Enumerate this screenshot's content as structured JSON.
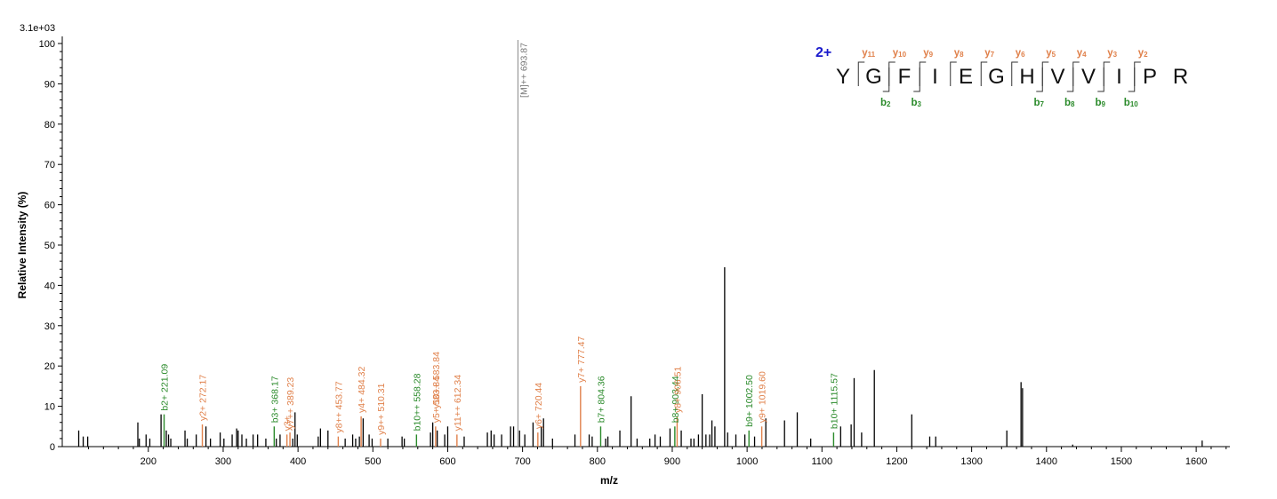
{
  "chart_data": {
    "type": "bar",
    "subtype": "ms2-spectrum",
    "xlabel": "m/z",
    "ylabel": "Relative   Intensity (%)",
    "y_scale_label": "3.1e+03",
    "xlim": [
      85,
      1645
    ],
    "ylim": [
      0,
      100
    ],
    "x_ticks": [
      200,
      300,
      400,
      500,
      600,
      700,
      800,
      900,
      1000,
      1100,
      1200,
      1300,
      1400,
      1500,
      1600
    ],
    "y_ticks": [
      0,
      10,
      20,
      30,
      40,
      50,
      60,
      70,
      80,
      90,
      100
    ],
    "grid": false,
    "colors": {
      "b_ion": "#2a8a2a",
      "y_ion": "#e0804a",
      "precursor": "#999999",
      "other": "#000000",
      "charge": "#1a1acc"
    },
    "precursor": {
      "x": 693.87,
      "y": 100,
      "label": "[M]++ 693.87"
    },
    "labeled_peaks": [
      {
        "x": 221.09,
        "y": 8,
        "type": "b",
        "label": "b2+ 221.09"
      },
      {
        "x": 272.17,
        "y": 5.5,
        "type": "y",
        "label": "y2+ 272.17"
      },
      {
        "x": 368.17,
        "y": 5,
        "type": "b",
        "label": "b3+ 368.17"
      },
      {
        "x": 385.2,
        "y": 3,
        "type": "y",
        "label": "y3+"
      },
      {
        "x": 389.23,
        "y": 3.5,
        "type": "y",
        "label": "y7++ 389.23"
      },
      {
        "x": 453.77,
        "y": 2.5,
        "type": "y",
        "label": "y8++ 453.77"
      },
      {
        "x": 484.32,
        "y": 7.5,
        "type": "y",
        "label": "y4+ 484.32"
      },
      {
        "x": 510.31,
        "y": 2,
        "type": "y",
        "label": "y9++ 510.31"
      },
      {
        "x": 558.28,
        "y": 3,
        "type": "b",
        "label": "b10++ 558.28"
      },
      {
        "x": 583.84,
        "y": 5,
        "type": "y",
        "label": "y5+ 583.84"
      },
      {
        "x": 583.84,
        "y": 5,
        "type": "y",
        "label": "y10++ 583.84"
      },
      {
        "x": 612.34,
        "y": 3,
        "type": "y",
        "label": "y11++ 612.34"
      },
      {
        "x": 720.44,
        "y": 3.5,
        "type": "y",
        "label": "y6+ 720.44"
      },
      {
        "x": 777.47,
        "y": 15,
        "type": "y",
        "label": "y7+ 777.47"
      },
      {
        "x": 804.36,
        "y": 5,
        "type": "b",
        "label": "b7+ 804.36"
      },
      {
        "x": 903.44,
        "y": 5,
        "type": "b",
        "label": "b8+ 903.44"
      },
      {
        "x": 906.51,
        "y": 7.5,
        "type": "y",
        "label": "y8+ 906.51"
      },
      {
        "x": 1002.5,
        "y": 4,
        "type": "b",
        "label": "b9+ 1002.50"
      },
      {
        "x": 1019.6,
        "y": 5,
        "type": "y",
        "label": "y9+ 1019.60"
      },
      {
        "x": 1115.57,
        "y": 3.5,
        "type": "b",
        "label": "b10+ 1115.57"
      }
    ],
    "other_peaks": [
      [
        107,
        4
      ],
      [
        113,
        2.5
      ],
      [
        119,
        2.5
      ],
      [
        186,
        6
      ],
      [
        188,
        2
      ],
      [
        197,
        3
      ],
      [
        202,
        2
      ],
      [
        217,
        8
      ],
      [
        224,
        4
      ],
      [
        227,
        3
      ],
      [
        230,
        2
      ],
      [
        249,
        4
      ],
      [
        252,
        2
      ],
      [
        264,
        3
      ],
      [
        277,
        5
      ],
      [
        283,
        2
      ],
      [
        296,
        3.5
      ],
      [
        301,
        2
      ],
      [
        312,
        3
      ],
      [
        318,
        4.5
      ],
      [
        320,
        4
      ],
      [
        325,
        3
      ],
      [
        331,
        2
      ],
      [
        340,
        3
      ],
      [
        346,
        3
      ],
      [
        357,
        2
      ],
      [
        371,
        2
      ],
      [
        376,
        3
      ],
      [
        393,
        2
      ],
      [
        396,
        8.5
      ],
      [
        399,
        3
      ],
      [
        427,
        2.5
      ],
      [
        430,
        4.5
      ],
      [
        440,
        4
      ],
      [
        463,
        2
      ],
      [
        473,
        3
      ],
      [
        477,
        2
      ],
      [
        482,
        2.5
      ],
      [
        487,
        7
      ],
      [
        495,
        3
      ],
      [
        499,
        2
      ],
      [
        520,
        2
      ],
      [
        539,
        2.5
      ],
      [
        542,
        2
      ],
      [
        577,
        3.5
      ],
      [
        580,
        6
      ],
      [
        586,
        4
      ],
      [
        596,
        3
      ],
      [
        600,
        5
      ],
      [
        622,
        2.5
      ],
      [
        653,
        3.5
      ],
      [
        658,
        4
      ],
      [
        662,
        3
      ],
      [
        672,
        3
      ],
      [
        684,
        5
      ],
      [
        688,
        5
      ],
      [
        696,
        4
      ],
      [
        703,
        3
      ],
      [
        714,
        6
      ],
      [
        725,
        5
      ],
      [
        728,
        7
      ],
      [
        740,
        2
      ],
      [
        770,
        3
      ],
      [
        789,
        3
      ],
      [
        793,
        2.5
      ],
      [
        811,
        2
      ],
      [
        814,
        2.5
      ],
      [
        830,
        4
      ],
      [
        845,
        12.5
      ],
      [
        853,
        2
      ],
      [
        870,
        2
      ],
      [
        877,
        3
      ],
      [
        884,
        2.5
      ],
      [
        897,
        4.5
      ],
      [
        912,
        4
      ],
      [
        925,
        2
      ],
      [
        929,
        2
      ],
      [
        935,
        3
      ],
      [
        940,
        13
      ],
      [
        945,
        3
      ],
      [
        950,
        3
      ],
      [
        953,
        6.5
      ],
      [
        957,
        5
      ],
      [
        970,
        44.5
      ],
      [
        974,
        3.5
      ],
      [
        985,
        3
      ],
      [
        997,
        3
      ],
      [
        1010,
        2.5
      ],
      [
        1025,
        7
      ],
      [
        1050,
        6.5
      ],
      [
        1067,
        8.5
      ],
      [
        1085,
        2
      ],
      [
        1125,
        5
      ],
      [
        1139,
        5.5
      ],
      [
        1143,
        17
      ],
      [
        1153,
        3.5
      ],
      [
        1170,
        19
      ],
      [
        1220,
        8
      ],
      [
        1244,
        2.5
      ],
      [
        1252,
        2.5
      ],
      [
        1347,
        4
      ],
      [
        1366,
        16
      ],
      [
        1368,
        14.5
      ],
      [
        1435,
        0.5
      ],
      [
        1608,
        1.5
      ]
    ]
  },
  "sequence": {
    "charge": "2+",
    "residues": [
      "Y",
      "G",
      "F",
      "I",
      "E",
      "G",
      "H",
      "V",
      "V",
      "I",
      "P",
      "R"
    ],
    "y_ions": [
      {
        "after": 1,
        "main": "y",
        "sub": "11"
      },
      {
        "after": 2,
        "main": "y",
        "sub": "10"
      },
      {
        "after": 3,
        "main": "y",
        "sub": "9"
      },
      {
        "after": 4,
        "main": "y",
        "sub": "8"
      },
      {
        "after": 5,
        "main": "y",
        "sub": "7"
      },
      {
        "after": 6,
        "main": "y",
        "sub": "6"
      },
      {
        "after": 7,
        "main": "y",
        "sub": "5"
      },
      {
        "after": 8,
        "main": "y",
        "sub": "4"
      },
      {
        "after": 9,
        "main": "y",
        "sub": "3"
      },
      {
        "after": 10,
        "main": "y",
        "sub": "2"
      }
    ],
    "b_ions": [
      {
        "after": 2,
        "main": "b",
        "sub": "2"
      },
      {
        "after": 3,
        "main": "b",
        "sub": "3"
      },
      {
        "after": 7,
        "main": "b",
        "sub": "7"
      },
      {
        "after": 8,
        "main": "b",
        "sub": "8"
      },
      {
        "after": 9,
        "main": "b",
        "sub": "9"
      },
      {
        "after": 10,
        "main": "b",
        "sub": "10"
      }
    ]
  }
}
